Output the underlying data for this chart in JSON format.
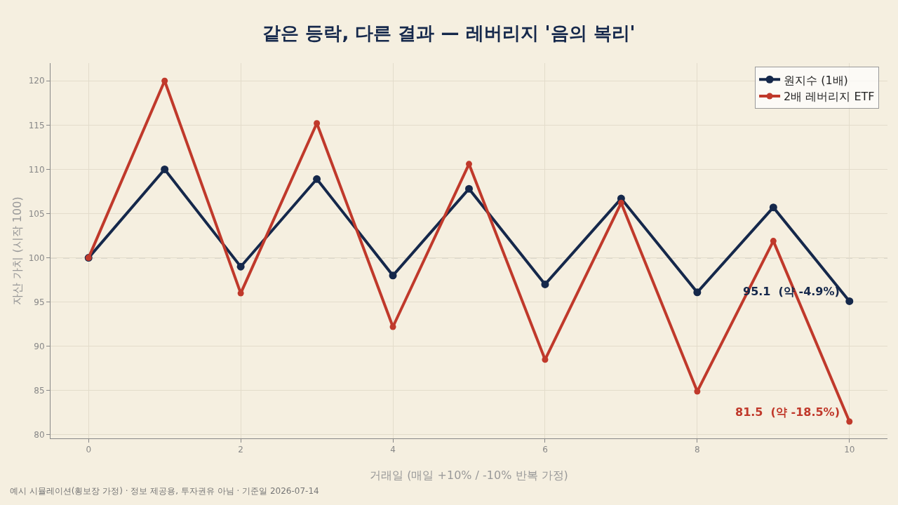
{
  "chart_data": {
    "type": "line",
    "title": "같은 등락, 다른 결과 — 레버리지 '음의 복리'",
    "xlabel": "거래일 (매일 +10% / -10% 반복 가정)",
    "ylabel": "자산 가치 (시작 100)",
    "x": [
      0,
      1,
      2,
      3,
      4,
      5,
      6,
      7,
      8,
      9,
      10
    ],
    "series": [
      {
        "name": "원지수 (1배)",
        "color": "#15284b",
        "values": [
          100,
          110,
          99,
          108.9,
          98.0,
          107.8,
          97.0,
          106.7,
          96.1,
          105.7,
          95.1
        ]
      },
      {
        "name": "2배 레버리지 ETF",
        "color": "#c0392b",
        "values": [
          100,
          120,
          96,
          115.2,
          92.2,
          110.6,
          88.5,
          106.2,
          84.9,
          101.9,
          81.5
        ]
      }
    ],
    "xlim": [
      -0.5,
      10.5
    ],
    "xticks": [
      0,
      2,
      4,
      6,
      8,
      10
    ],
    "ylim": [
      79.6,
      122
    ],
    "yticks": [
      80,
      85,
      90,
      95,
      100,
      105,
      110,
      115,
      120
    ],
    "grid": true,
    "legend": "top right",
    "marker": "circle",
    "line_style": "solid",
    "ref_lines": [
      {
        "axis": "y",
        "value": 100,
        "label": null,
        "color": "#999999",
        "line_style": "dashed"
      }
    ],
    "annotations": [
      {
        "text": "95.1  (약 -4.9%)",
        "x": 10,
        "y": 95.1
      },
      {
        "text": "81.5  (약 -18.5%)",
        "x": 10,
        "y": 81.5
      },
      "예시 시뮬레이션(횡보장 가정) · 정보 제공용, 투자권유 아님 · 기준일 2026-07-14"
    ]
  }
}
